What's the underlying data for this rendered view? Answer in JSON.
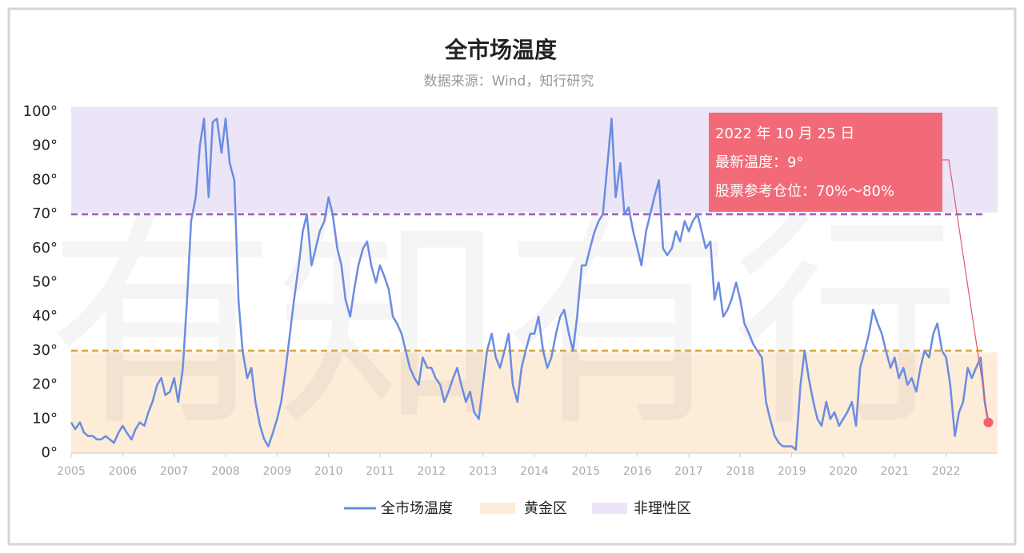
{
  "chart_data": {
    "type": "line",
    "title": "全市场温度",
    "subtitle": "数据来源：Wind，知行研究",
    "watermark": "有知有行",
    "xlim": [
      2005,
      2023
    ],
    "xticks": [
      2005,
      2006,
      2007,
      2008,
      2009,
      2010,
      2011,
      2012,
      2013,
      2014,
      2015,
      2016,
      2017,
      2018,
      2019,
      2020,
      2021,
      2022
    ],
    "ylim": [
      0,
      101.5
    ],
    "yticks": [
      {
        "value": 0,
        "label": "0°"
      },
      {
        "value": 10,
        "label": "10°"
      },
      {
        "value": 20,
        "label": "20°"
      },
      {
        "value": 30,
        "label": "30°"
      },
      {
        "value": 40,
        "label": "40°"
      },
      {
        "value": 50,
        "label": "50°"
      },
      {
        "value": 60,
        "label": "60°"
      },
      {
        "value": 70,
        "label": "70°"
      },
      {
        "value": 80,
        "label": "80°"
      },
      {
        "value": 90,
        "label": "90°"
      },
      {
        "value": 100,
        "label": "100°"
      }
    ],
    "bands": [
      {
        "name": "黄金区",
        "range": [
          0,
          29.5
        ],
        "color": "#fcecd8"
      },
      {
        "name": "非理性区",
        "range": [
          70.5,
          101.5
        ],
        "color": "#ece5f8"
      }
    ],
    "reference_lines": [
      {
        "value": 70,
        "color": "#9b5fc0"
      },
      {
        "value": 30,
        "color": "#d9a53c"
      }
    ],
    "x": [
      2005.0,
      2005.08,
      2005.17,
      2005.25,
      2005.33,
      2005.42,
      2005.5,
      2005.58,
      2005.67,
      2005.75,
      2005.83,
      2005.92,
      2006.0,
      2006.08,
      2006.17,
      2006.25,
      2006.33,
      2006.42,
      2006.5,
      2006.58,
      2006.67,
      2006.75,
      2006.83,
      2006.92,
      2007.0,
      2007.08,
      2007.17,
      2007.25,
      2007.33,
      2007.42,
      2007.5,
      2007.58,
      2007.67,
      2007.75,
      2007.83,
      2007.92,
      2008.0,
      2008.08,
      2008.17,
      2008.25,
      2008.33,
      2008.42,
      2008.5,
      2008.58,
      2008.67,
      2008.75,
      2008.83,
      2008.92,
      2009.0,
      2009.08,
      2009.17,
      2009.25,
      2009.33,
      2009.42,
      2009.5,
      2009.58,
      2009.67,
      2009.75,
      2009.83,
      2009.92,
      2010.0,
      2010.08,
      2010.17,
      2010.25,
      2010.33,
      2010.42,
      2010.5,
      2010.58,
      2010.67,
      2010.75,
      2010.83,
      2010.92,
      2011.0,
      2011.08,
      2011.17,
      2011.25,
      2011.33,
      2011.42,
      2011.5,
      2011.58,
      2011.67,
      2011.75,
      2011.83,
      2011.92,
      2012.0,
      2012.08,
      2012.17,
      2012.25,
      2012.33,
      2012.42,
      2012.5,
      2012.58,
      2012.67,
      2012.75,
      2012.83,
      2012.92,
      2013.0,
      2013.08,
      2013.17,
      2013.25,
      2013.33,
      2013.42,
      2013.5,
      2013.58,
      2013.67,
      2013.75,
      2013.83,
      2013.92,
      2014.0,
      2014.08,
      2014.17,
      2014.25,
      2014.33,
      2014.42,
      2014.5,
      2014.58,
      2014.67,
      2014.75,
      2014.83,
      2014.92,
      2015.0,
      2015.08,
      2015.17,
      2015.25,
      2015.33,
      2015.42,
      2015.5,
      2015.58,
      2015.67,
      2015.75,
      2015.83,
      2015.92,
      2016.0,
      2016.08,
      2016.17,
      2016.25,
      2016.33,
      2016.42,
      2016.5,
      2016.58,
      2016.67,
      2016.75,
      2016.83,
      2016.92,
      2017.0,
      2017.08,
      2017.17,
      2017.25,
      2017.33,
      2017.42,
      2017.5,
      2017.58,
      2017.67,
      2017.75,
      2017.83,
      2017.92,
      2018.0,
      2018.08,
      2018.17,
      2018.25,
      2018.33,
      2018.42,
      2018.5,
      2018.58,
      2018.67,
      2018.75,
      2018.83,
      2018.92,
      2019.0,
      2019.08,
      2019.17,
      2019.25,
      2019.33,
      2019.42,
      2019.5,
      2019.58,
      2019.67,
      2019.75,
      2019.83,
      2019.92,
      2020.0,
      2020.08,
      2020.17,
      2020.25,
      2020.33,
      2020.42,
      2020.5,
      2020.58,
      2020.67,
      2020.75,
      2020.83,
      2020.92,
      2021.0,
      2021.08,
      2021.17,
      2021.25,
      2021.33,
      2021.42,
      2021.5,
      2021.58,
      2021.67,
      2021.75,
      2021.83,
      2021.92,
      2022.0,
      2022.08,
      2022.17,
      2022.25,
      2022.33,
      2022.42,
      2022.5,
      2022.58,
      2022.67,
      2022.75,
      2022.82
    ],
    "series": [
      {
        "name": "全市场温度",
        "color": "#6a8ce2",
        "values": [
          9,
          7,
          9,
          6,
          5,
          5,
          4,
          4,
          5,
          4,
          3,
          6,
          8,
          6,
          4,
          7,
          9,
          8,
          12,
          15,
          20,
          22,
          17,
          18,
          22,
          15,
          25,
          45,
          68,
          75,
          90,
          98,
          75,
          97,
          98,
          88,
          98,
          85,
          80,
          45,
          30,
          22,
          25,
          15,
          8,
          4,
          2,
          6,
          10,
          15,
          25,
          35,
          45,
          55,
          65,
          70,
          55,
          60,
          65,
          68,
          75,
          70,
          60,
          55,
          45,
          40,
          48,
          55,
          60,
          62,
          55,
          50,
          55,
          52,
          48,
          40,
          38,
          35,
          30,
          25,
          22,
          20,
          28,
          25,
          25,
          22,
          20,
          15,
          18,
          22,
          25,
          20,
          15,
          18,
          12,
          10,
          20,
          30,
          35,
          28,
          25,
          30,
          35,
          20,
          15,
          25,
          30,
          35,
          35,
          40,
          30,
          25,
          28,
          35,
          40,
          42,
          35,
          30,
          40,
          55,
          55,
          60,
          65,
          68,
          70,
          85,
          98,
          75,
          85,
          70,
          72,
          65,
          60,
          55,
          65,
          70,
          75,
          80,
          60,
          58,
          60,
          65,
          62,
          68,
          65,
          68,
          70,
          65,
          60,
          62,
          45,
          50,
          40,
          42,
          45,
          50,
          45,
          38,
          35,
          32,
          30,
          28,
          15,
          10,
          5,
          3,
          2,
          2,
          2,
          1,
          20,
          30,
          22,
          15,
          10,
          8,
          15,
          10,
          12,
          8,
          10,
          12,
          15,
          8,
          25,
          30,
          35,
          42,
          38,
          35,
          30,
          25,
          28,
          22,
          25,
          20,
          22,
          18,
          25,
          30,
          28,
          35,
          38,
          30,
          28,
          20,
          5,
          12,
          15,
          25,
          22,
          25,
          28,
          15,
          9
        ]
      }
    ],
    "annotation": {
      "lines": [
        "2022 年 10 月 25 日",
        "最新温度：9°",
        "股票参考仓位：70%～80%"
      ],
      "color": "#f26a78"
    }
  }
}
